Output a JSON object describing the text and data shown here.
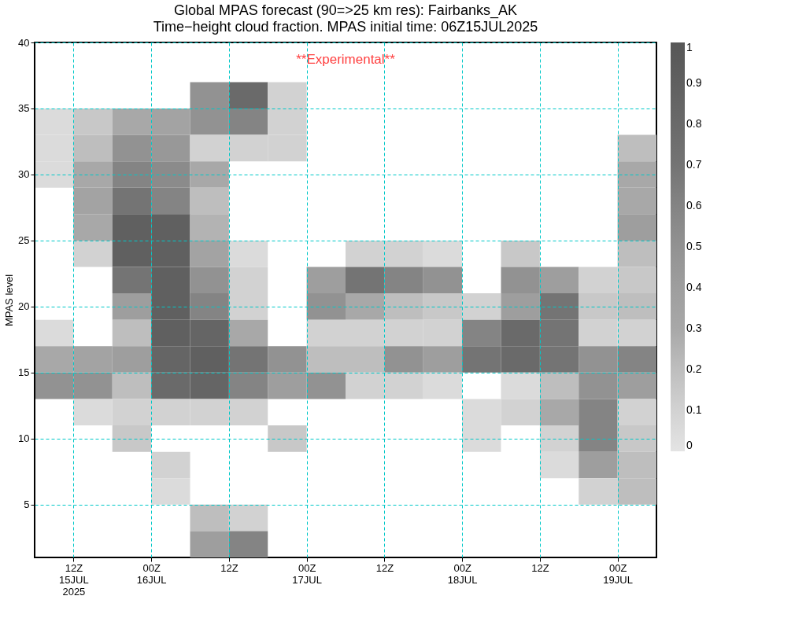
{
  "chart_data": {
    "type": "heatmap",
    "title": "Global MPAS forecast (90=>25 km res): Fairbanks_AK",
    "subtitle": "Time−height cloud fraction.   MPAS initial time: 06Z15JUL2025",
    "ylabel": "MPAS level",
    "annotations": [
      "**Experimental**"
    ],
    "x": [
      "2025-07-15T09:00",
      "2025-07-15T15:00",
      "2025-07-15T21:00",
      "2025-07-16T03:00",
      "2025-07-16T09:00",
      "2025-07-16T15:00",
      "2025-07-16T21:00",
      "2025-07-17T03:00",
      "2025-07-17T09:00",
      "2025-07-17T15:00",
      "2025-07-17T21:00",
      "2025-07-18T03:00",
      "2025-07-18T09:00",
      "2025-07-18T15:00",
      "2025-07-18T21:00",
      "2025-07-19T03:00"
    ],
    "y": [
      36,
      34,
      32,
      30,
      28,
      26,
      24,
      22,
      20,
      18,
      16,
      14,
      12,
      10,
      8,
      6,
      4,
      2
    ],
    "cells": [
      [
        null,
        null,
        null,
        null,
        0.5,
        0.8,
        0.1,
        null,
        null,
        null,
        null,
        null,
        null,
        null,
        null,
        null
      ],
      [
        0.05,
        0.15,
        0.3,
        0.35,
        0.5,
        0.6,
        0.1,
        null,
        null,
        null,
        null,
        null,
        null,
        null,
        null,
        null
      ],
      [
        0.05,
        0.2,
        0.5,
        0.45,
        0.1,
        0.1,
        0.1,
        null,
        null,
        null,
        null,
        null,
        null,
        null,
        null,
        0.2
      ],
      [
        0.05,
        0.3,
        0.6,
        0.55,
        0.3,
        null,
        null,
        null,
        null,
        null,
        null,
        null,
        null,
        null,
        null,
        0.3
      ],
      [
        null,
        0.35,
        0.7,
        0.6,
        0.2,
        null,
        null,
        null,
        null,
        null,
        null,
        null,
        null,
        null,
        null,
        0.3
      ],
      [
        null,
        0.3,
        0.9,
        0.9,
        0.25,
        null,
        null,
        null,
        null,
        null,
        null,
        null,
        null,
        null,
        null,
        0.4
      ],
      [
        null,
        0.1,
        0.9,
        0.9,
        0.35,
        0.05,
        null,
        null,
        0.1,
        0.1,
        0.05,
        null,
        0.15,
        null,
        null,
        0.2
      ],
      [
        null,
        null,
        0.7,
        0.9,
        0.5,
        0.1,
        null,
        0.4,
        0.7,
        0.6,
        0.5,
        null,
        0.5,
        0.4,
        0.1,
        0.15
      ],
      [
        null,
        null,
        0.4,
        0.9,
        0.6,
        0.1,
        null,
        0.5,
        0.3,
        0.2,
        0.15,
        0.1,
        0.4,
        0.7,
        0.15,
        0.2
      ],
      [
        0.05,
        null,
        0.2,
        0.9,
        0.85,
        0.3,
        null,
        0.1,
        0.1,
        0.1,
        0.1,
        0.6,
        0.8,
        0.7,
        0.1,
        0.1
      ],
      [
        0.3,
        0.35,
        0.4,
        0.85,
        0.9,
        0.7,
        0.5,
        0.2,
        0.2,
        0.5,
        0.4,
        0.7,
        0.8,
        0.7,
        0.5,
        0.6
      ],
      [
        0.5,
        0.5,
        0.2,
        0.8,
        0.85,
        0.6,
        0.4,
        0.5,
        0.1,
        0.1,
        0.05,
        null,
        0.05,
        0.2,
        0.5,
        0.4
      ],
      [
        null,
        0.05,
        0.1,
        0.1,
        0.1,
        0.1,
        null,
        null,
        null,
        null,
        null,
        0.05,
        0.1,
        0.3,
        0.6,
        0.1
      ],
      [
        null,
        null,
        0.15,
        null,
        null,
        null,
        0.15,
        null,
        null,
        null,
        null,
        0.05,
        null,
        0.1,
        0.6,
        0.15
      ],
      [
        null,
        null,
        null,
        0.1,
        null,
        null,
        null,
        null,
        null,
        null,
        null,
        null,
        null,
        0.05,
        0.4,
        0.2
      ],
      [
        null,
        null,
        null,
        0.05,
        null,
        null,
        null,
        null,
        null,
        null,
        null,
        null,
        null,
        null,
        0.1,
        0.2
      ],
      [
        null,
        null,
        null,
        null,
        0.2,
        0.1,
        null,
        null,
        null,
        null,
        null,
        null,
        null,
        null,
        null,
        null
      ],
      [
        null,
        null,
        null,
        null,
        0.4,
        0.6,
        null,
        null,
        null,
        null,
        null,
        null,
        null,
        null,
        null,
        null
      ]
    ],
    "colors": [
      "#e4e4e4",
      "#d2d2d2",
      "#bebebe",
      "#a8a8a8",
      "#9e9e9e",
      "#929292",
      "#848484",
      "#747474",
      "#6a6a6a",
      "#606060",
      "#575757"
    ],
    "clim": [
      0,
      1
    ],
    "cticks": [
      0,
      0.1,
      0.2,
      0.3,
      0.4,
      0.5,
      0.6,
      0.7,
      0.8,
      0.9,
      1
    ],
    "xlim": [
      "2025-07-15T06:00",
      "2025-07-19T06:00"
    ],
    "xticks": [
      {
        "value": "2025-07-15T12:00",
        "label": "12Z 15JUL 2025"
      },
      {
        "value": "2025-07-16T00:00",
        "label": "00Z 16JUL"
      },
      {
        "value": "2025-07-16T12:00",
        "label": "12Z"
      },
      {
        "value": "2025-07-17T00:00",
        "label": "00Z 17JUL"
      },
      {
        "value": "2025-07-17T12:00",
        "label": "12Z"
      },
      {
        "value": "2025-07-18T00:00",
        "label": "00Z 18JUL"
      },
      {
        "value": "2025-07-18T12:00",
        "label": "12Z"
      },
      {
        "value": "2025-07-19T00:00",
        "label": "00Z 19JUL"
      }
    ],
    "ylim": [
      1,
      40
    ],
    "yticks": [
      5,
      10,
      15,
      20,
      25,
      30,
      35,
      40
    ],
    "grid": true
  }
}
